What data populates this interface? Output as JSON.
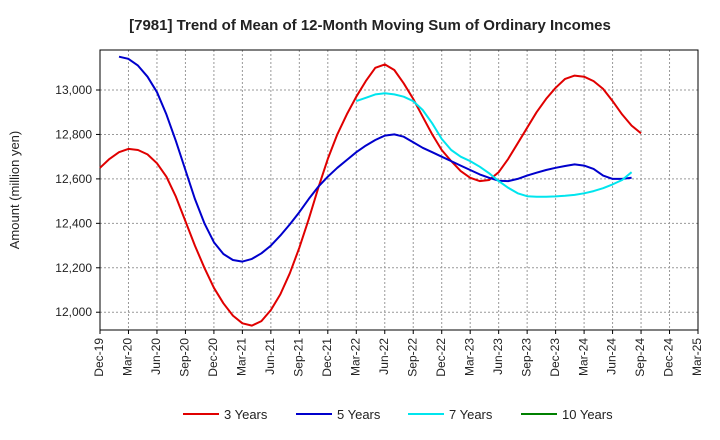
{
  "chart_data": {
    "type": "line",
    "title": "[7981]  Trend of Mean of 12-Month Moving Sum of Ordinary Incomes",
    "xlabel": "",
    "ylabel": "Amount (million yen)",
    "ylim": [
      11920,
      13180
    ],
    "yticks": [
      12000,
      12200,
      12400,
      12600,
      12800,
      13000
    ],
    "ytick_labels": [
      "12,000",
      "12,200",
      "12,400",
      "12,600",
      "12,800",
      "13,000"
    ],
    "x_tick_labels": [
      "Dec-19",
      "Mar-20",
      "Jun-20",
      "Sep-20",
      "Dec-20",
      "Mar-21",
      "Jun-21",
      "Sep-21",
      "Dec-21",
      "Mar-22",
      "Jun-22",
      "Sep-22",
      "Dec-22",
      "Mar-23",
      "Jun-23",
      "Sep-23",
      "Dec-23",
      "Mar-24",
      "Jun-24",
      "Sep-24",
      "Dec-24",
      "Mar-25"
    ],
    "x_index_range": [
      0,
      63
    ],
    "grid": true,
    "series": [
      {
        "name": "3 Years",
        "color": "#e00000",
        "start_index": 0,
        "values": [
          12650,
          12690,
          12720,
          12735,
          12730,
          12710,
          12670,
          12610,
          12520,
          12410,
          12300,
          12200,
          12110,
          12040,
          11985,
          11950,
          11940,
          11960,
          12010,
          12080,
          12175,
          12290,
          12420,
          12560,
          12690,
          12800,
          12890,
          12970,
          13040,
          13100,
          13115,
          13090,
          13030,
          12960,
          12880,
          12800,
          12730,
          12680,
          12635,
          12605,
          12590,
          12595,
          12630,
          12690,
          12760,
          12830,
          12900,
          12960,
          13010,
          13050,
          13065,
          13060,
          13040,
          13005,
          12950,
          12890,
          12840,
          12805
        ]
      },
      {
        "name": "5 Years",
        "color": "#0000cc",
        "start_index": 2,
        "values": [
          13150,
          13140,
          13110,
          13060,
          12990,
          12890,
          12770,
          12640,
          12510,
          12400,
          12315,
          12262,
          12235,
          12228,
          12240,
          12265,
          12300,
          12345,
          12395,
          12450,
          12510,
          12565,
          12610,
          12650,
          12685,
          12720,
          12750,
          12775,
          12795,
          12800,
          12790,
          12765,
          12740,
          12720,
          12700,
          12680,
          12660,
          12640,
          12620,
          12605,
          12592,
          12590,
          12600,
          12615,
          12628,
          12640,
          12650,
          12658,
          12665,
          12660,
          12645,
          12615,
          12600,
          12600,
          12605
        ]
      },
      {
        "name": "7 Years",
        "color": "#00e5ee",
        "start_index": 27,
        "values": [
          12950,
          12965,
          12980,
          12985,
          12980,
          12970,
          12950,
          12910,
          12850,
          12780,
          12730,
          12700,
          12680,
          12655,
          12625,
          12590,
          12560,
          12535,
          12522,
          12520,
          12520,
          12521,
          12524,
          12528,
          12535,
          12545,
          12558,
          12575,
          12595,
          12630
        ]
      },
      {
        "name": "10 Years",
        "color": "#008000",
        "start_index": 0,
        "values": []
      }
    ]
  }
}
